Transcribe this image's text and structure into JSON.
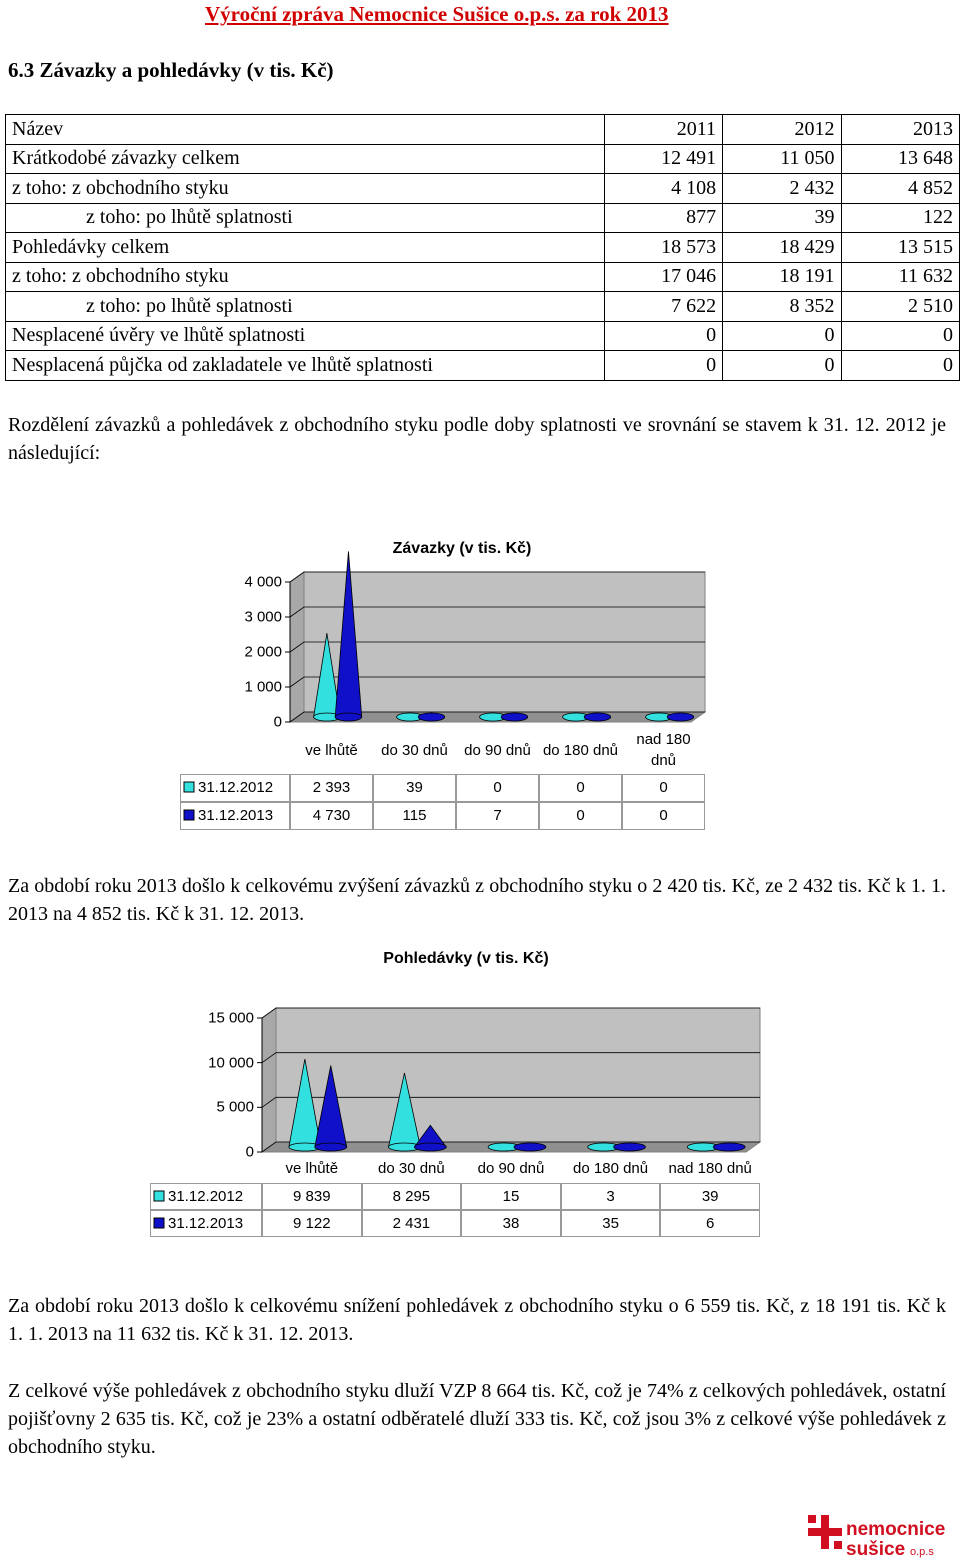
{
  "header": {
    "title": "Výroční zpráva Nemocnice Sušice o.p.s. za rok 2013"
  },
  "section": {
    "title": "6.3 Závazky a pohledávky (v tis. Kč)"
  },
  "table": {
    "columns": [
      "Název",
      "2011",
      "2012",
      "2013"
    ],
    "rows": [
      [
        "Krátkodobé závazky celkem",
        "12 491",
        "11 050",
        "13 648"
      ],
      [
        "z toho: z obchodního styku",
        "4 108",
        "2 432",
        "4 852"
      ],
      [
        "z toho: po lhůtě splatnosti",
        "877",
        "39",
        "122"
      ],
      [
        "Pohledávky celkem",
        "18 573",
        "18 429",
        "13 515"
      ],
      [
        "z toho: z obchodního styku",
        "17 046",
        "18 191",
        "11 632"
      ],
      [
        "z toho: po lhůtě splatnosti",
        "7 622",
        "8 352",
        "2 510"
      ],
      [
        "Nesplacené úvěry ve lhůtě splatnosti",
        "0",
        "0",
        "0"
      ],
      [
        "Nesplacená půjčka od zakladatele ve lhůtě splatnosti",
        "0",
        "0",
        "0"
      ]
    ]
  },
  "paragraphs": [
    "Rozdělení závazků a pohledávek z obchodního styku podle doby splatnosti ve srovnání se stavem k 31. 12. 2012 je následující:",
    "Za období roku 2013 došlo k celkovému zvýšení závazků z obchodního styku o 2 420 tis. Kč, ze 2 432 tis. Kč k 1. 1. 2013 na 4 852 tis. Kč k 31. 12. 2013.",
    "Za období roku 2013 došlo k celkovému snížení pohledávek z obchodního styku o 6 559 tis. Kč, z 18 191 tis. Kč k 1. 1. 2013 na 11 632 tis. Kč k 31. 12. 2013.",
    "Z celkové výše pohledávek z obchodního styku dluží VZP 8 664 tis. Kč, což je 74% z celkových pohledávek, ostatní pojišťovny 2 635 tis. Kč, což je 23% a ostatní odběratelé dluží 333 tis. Kč, což jsou 3% z celkové výše pohledávek z obchodního styku."
  ],
  "charts": [
    {
      "type": "cone",
      "title": "Závazky (v tis. Kč)",
      "categories": [
        "ve lhůtě",
        "do 30 dnů",
        "do 90 dnů",
        "do 180 dnů",
        "nad 180 dnů"
      ],
      "series": [
        {
          "name": "31.12.2012",
          "color": "#33e0e0",
          "values": [
            2393,
            39,
            0,
            0,
            0
          ],
          "value_labels": [
            "2 393",
            "39",
            "0",
            "0",
            "0"
          ]
        },
        {
          "name": "31.12.2013",
          "color": "#1010c8",
          "values": [
            4730,
            115,
            7,
            0,
            0
          ],
          "value_labels": [
            "4 730",
            "115",
            "7",
            "0",
            "0"
          ]
        }
      ],
      "ylim": [
        0,
        4000
      ],
      "yticks": [
        0,
        {
          "value": 1000,
          "label": "1 000"
        },
        {
          "value": 2000,
          "label": "2 000"
        },
        {
          "value": 3000,
          "label": "3 000"
        },
        {
          "value": 4000,
          "label": "4 000"
        }
      ],
      "grid": true
    },
    {
      "type": "cone",
      "title": "Pohledávky (v tis. Kč)",
      "categories": [
        "ve lhůtě",
        "do 30 dnů",
        "do 90 dnů",
        "do 180 dnů",
        "nad 180 dnů"
      ],
      "series": [
        {
          "name": "31.12.2012",
          "color": "#33e0e0",
          "values": [
            9839,
            8295,
            15,
            3,
            39
          ],
          "value_labels": [
            "9 839",
            "8 295",
            "15",
            "3",
            "39"
          ]
        },
        {
          "name": "31.12.2013",
          "color": "#1010c8",
          "values": [
            9122,
            2431,
            38,
            35,
            6
          ],
          "value_labels": [
            "9 122",
            "2 431",
            "38",
            "35",
            "6"
          ]
        }
      ],
      "ylim": [
        0,
        15000
      ],
      "yticks": [
        0,
        {
          "value": 5000,
          "label": "5 000"
        },
        {
          "value": 10000,
          "label": "10 000"
        },
        {
          "value": 15000,
          "label": "15 000"
        }
      ],
      "grid": true
    }
  ],
  "logo": {
    "line1": "nemocnice",
    "line2": "sušice",
    "line3": "o.p.s"
  }
}
